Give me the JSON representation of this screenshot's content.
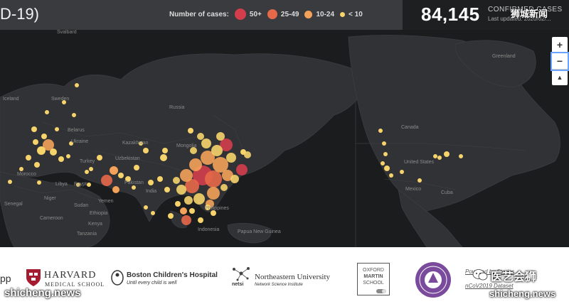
{
  "header": {
    "title": "D-19)",
    "legend_label": "Number of cases:",
    "legend": [
      {
        "label": "50+",
        "color": "#d43d4b"
      },
      {
        "label": "25-49",
        "color": "#e8684a"
      },
      {
        "label": "10-24",
        "color": "#f4a259"
      },
      {
        "label": "< 10",
        "color": "#f6d36b"
      }
    ],
    "confirmed_count": "84,145",
    "confirmed_label": "CONFIRMED CASES",
    "last_updated": "Last updated: 2020/02/..."
  },
  "watermark_top": "狮城新闻",
  "map": {
    "labels": [
      "Svalbard",
      "Greenland",
      "Iceland",
      "Sweden",
      "Russia",
      "Belarus",
      "Ukraine",
      "Kazakhstan",
      "Mongolia",
      "Turkey",
      "Uzbekistan",
      "Morocco",
      "Libya",
      "Egypt",
      "Pakistan",
      "India",
      "Yemen",
      "Niger",
      "Sudan",
      "Senegal",
      "Cameroon",
      "Tanzania",
      "Canada",
      "United States",
      "Mexico",
      "Cuba",
      "Philippines",
      "Indonesia",
      "Papua New Guinea",
      "Kenya",
      "Ethiopia"
    ]
  },
  "zoom": {
    "in": "+",
    "out": "−",
    "north": "▲"
  },
  "footer": {
    "app_fragment": "pp",
    "harvard": "HARVARD",
    "harvard_sub": "MEDICAL SCHOOL",
    "bch": "Boston Children's Hospital",
    "bch_sub": "Until every child is well",
    "northeastern": "Northeastern University",
    "netsi": "netsi",
    "netsi_sub": "Network Science Institute",
    "oxford": [
      "OXFORD",
      "MARTIN",
      "SCHOOL"
    ],
    "dataset_line1": "Powered by Stories",
    "dataset_line2": "nCoV2019 Dataset",
    "watermark_left": "shicheng.news",
    "watermark_right": "shicheng.news",
    "watermark_wechat": "医艺会狮"
  }
}
